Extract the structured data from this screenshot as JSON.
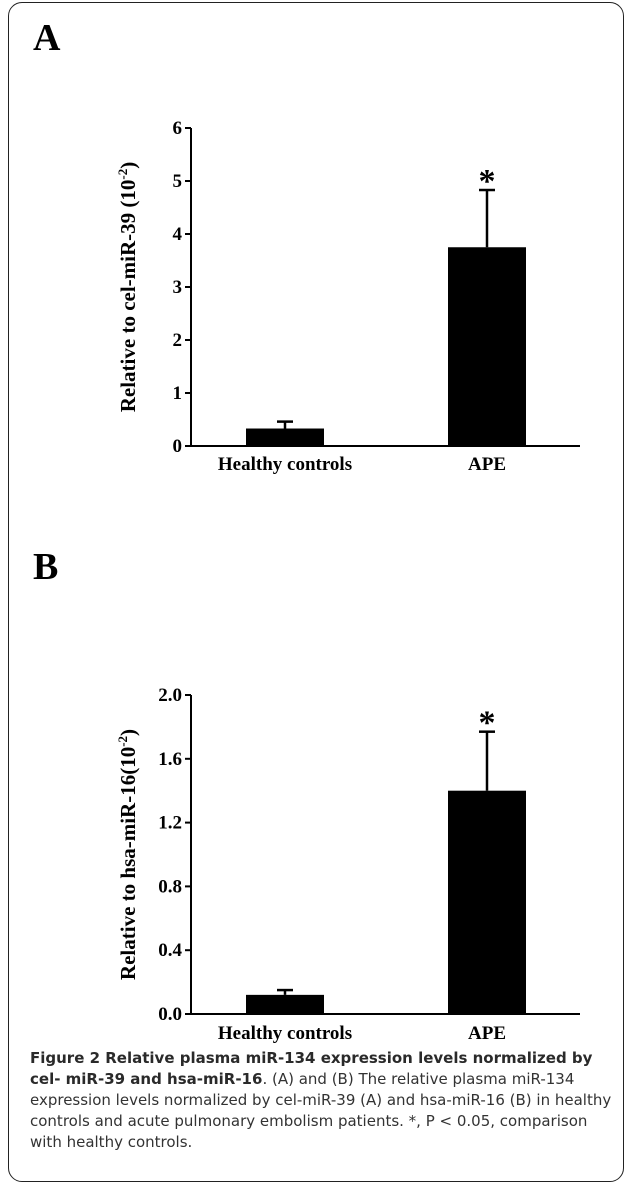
{
  "panels": [
    {
      "letter": "A"
    },
    {
      "letter": "B"
    }
  ],
  "chart_data": [
    {
      "type": "bar",
      "categories": [
        "Healthy controls",
        "APE"
      ],
      "values": [
        0.33,
        3.75
      ],
      "error": [
        0.13,
        1.08
      ],
      "annotations": [
        "",
        "*"
      ],
      "title": "",
      "xlabel": "",
      "ylabel": "Relative to cel-miR-39 (10-2)",
      "ylabel_main": "Relative to cel-miR-39 (10",
      "ylabel_exp": "-2",
      "ylabel_close": ")",
      "ylim": [
        0,
        6
      ],
      "yticks": [
        0,
        1,
        2,
        3,
        4,
        5,
        6
      ],
      "ytick_labels": [
        "0",
        "1",
        "2",
        "3",
        "4",
        "5",
        "6"
      ],
      "bar_color": "#000000"
    },
    {
      "type": "bar",
      "categories": [
        "Healthy controls",
        "APE"
      ],
      "values": [
        0.12,
        1.4
      ],
      "error": [
        0.03,
        0.37
      ],
      "annotations": [
        "",
        "*"
      ],
      "title": "",
      "xlabel": "",
      "ylabel": "Relative to hsa-miR-16(10-2)",
      "ylabel_main": "Relative to hsa-miR-16(10",
      "ylabel_exp": "-2",
      "ylabel_close": ")",
      "ylim": [
        0,
        2
      ],
      "yticks": [
        0,
        0.4,
        0.8,
        1.2,
        1.6,
        2.0
      ],
      "ytick_labels": [
        "0.0",
        "0.4",
        "0.8",
        "1.2",
        "1.6",
        "2.0"
      ],
      "bar_color": "#000000"
    }
  ],
  "caption": {
    "title": "Figure 2 Relative plasma miR-134 expression levels normalized by cel- miR-39 and hsa-miR-16",
    "body": ". (A) and (B) The relative plasma miR-134 expression levels normalized by cel-miR-39 (A) and hsa-miR-16 (B) in healthy controls and acute pulmonary embolism patients. *, P < 0.05, comparison with healthy controls."
  }
}
